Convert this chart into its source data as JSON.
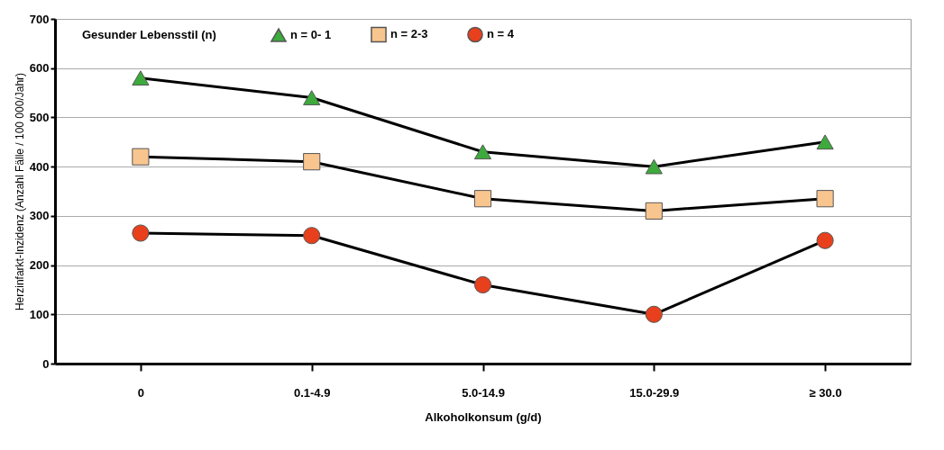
{
  "chart_data": {
    "type": "line",
    "categories": [
      "0",
      "0.1-4.9",
      "5.0-14.9",
      "15.0-29.9",
      "≥ 30.0"
    ],
    "xlabel": "Alkoholkonsum (g/d)",
    "ylabel": "Herzinfarkt-Inzidenz (Anzahl Fälle / 100 000/Jahr)",
    "legend_title": "Gesunder Lebensstil (n)",
    "series": [
      {
        "name": "n = 0- 1",
        "color": "#3cab3c",
        "marker": "triangle",
        "values": [
          580,
          540,
          430,
          400,
          450
        ]
      },
      {
        "name": "n = 2-3",
        "color": "#f9c58f",
        "marker": "square",
        "values": [
          420,
          410,
          335,
          310,
          335
        ]
      },
      {
        "name": "n = 4",
        "color": "#e8401c",
        "marker": "circle",
        "values": [
          265,
          260,
          160,
          100,
          250
        ]
      }
    ],
    "ylim": [
      0,
      700
    ],
    "yticks": [
      0,
      100,
      200,
      300,
      400,
      500,
      600,
      700
    ],
    "grid": "y",
    "legend": "top",
    "line_style": "solid"
  }
}
